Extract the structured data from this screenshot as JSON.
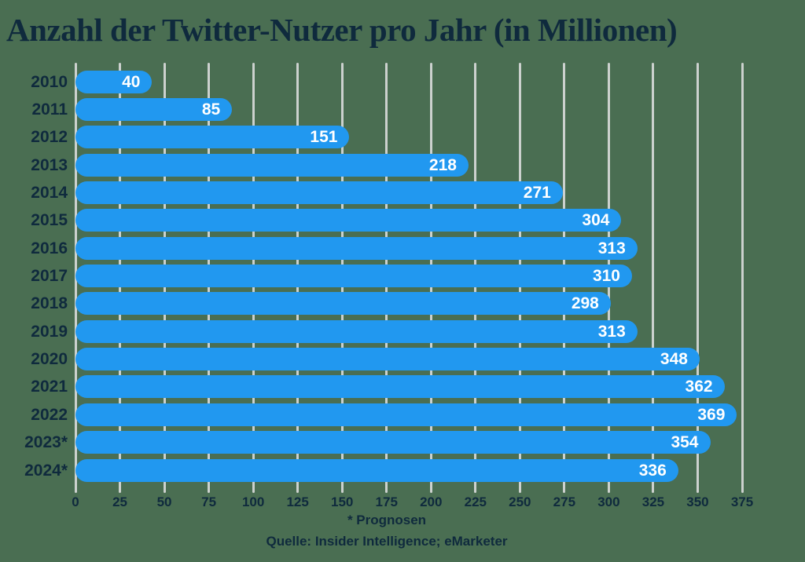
{
  "title": "Anzahl der Twitter-Nutzer pro Jahr (in Millionen)",
  "footer": {
    "footnote": "* Prognosen",
    "source": "Quelle: Insider Intelligence; eMarketer"
  },
  "colors": {
    "background": "#4a6e52",
    "bar": "#2198f0",
    "text_dark": "#0f2a3d",
    "gridline": "#ccd1ce",
    "value_label": "#ffffff"
  },
  "chart_data": {
    "type": "bar",
    "orientation": "horizontal",
    "title": "Anzahl der Twitter-Nutzer pro Jahr (in Millionen)",
    "categories": [
      "2010",
      "2011",
      "2012",
      "2013",
      "2014",
      "2015",
      "2016",
      "2017",
      "2018",
      "2019",
      "2020",
      "2021",
      "2022",
      "2023*",
      "2024*"
    ],
    "values": [
      40,
      85,
      151,
      218,
      271,
      304,
      313,
      310,
      298,
      313,
      348,
      362,
      369,
      354,
      336
    ],
    "xlim": [
      0,
      375
    ],
    "xticks": [
      0,
      25,
      50,
      75,
      100,
      125,
      150,
      175,
      200,
      225,
      250,
      275,
      300,
      325,
      350,
      375
    ],
    "grid": true,
    "legend": "none",
    "value_labels": "inside-end",
    "annotations": [
      "* Prognosen",
      "Quelle: Insider Intelligence; eMarketer"
    ]
  }
}
